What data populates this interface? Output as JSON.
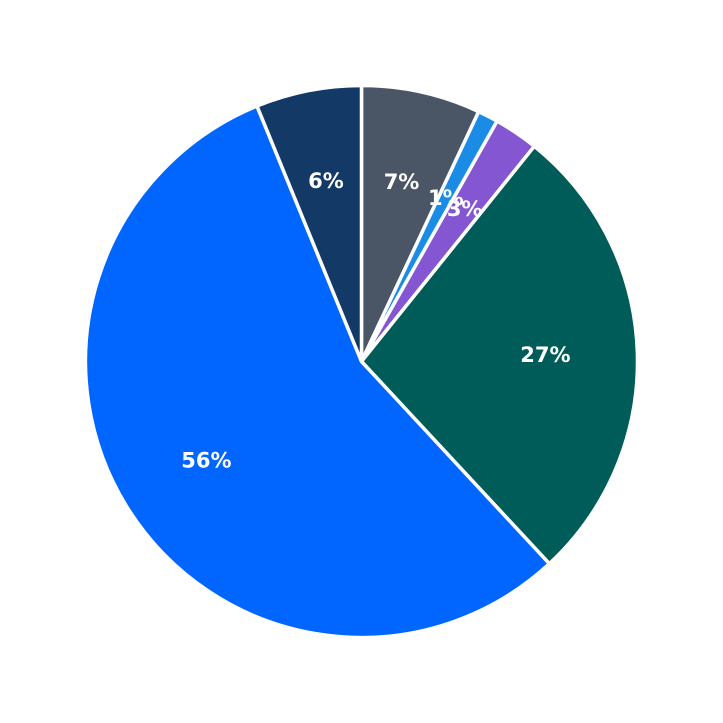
{
  "chart_data": {
    "type": "pie",
    "start_angle_deg": 90,
    "direction": "clockwise",
    "slices": [
      {
        "value": 7,
        "label": "7%",
        "color": "#4a5565"
      },
      {
        "value": 1.2,
        "label": "1%",
        "color": "#1a8ce6"
      },
      {
        "value": 2.6,
        "label": "3%",
        "color": "#8556d1"
      },
      {
        "value": 27.4,
        "label": "27%",
        "color": "#005c59"
      },
      {
        "value": 55.9,
        "label": "56%",
        "color": "#0066ff"
      },
      {
        "value": 6.2,
        "label": "6%",
        "color": "#133a66"
      }
    ]
  }
}
